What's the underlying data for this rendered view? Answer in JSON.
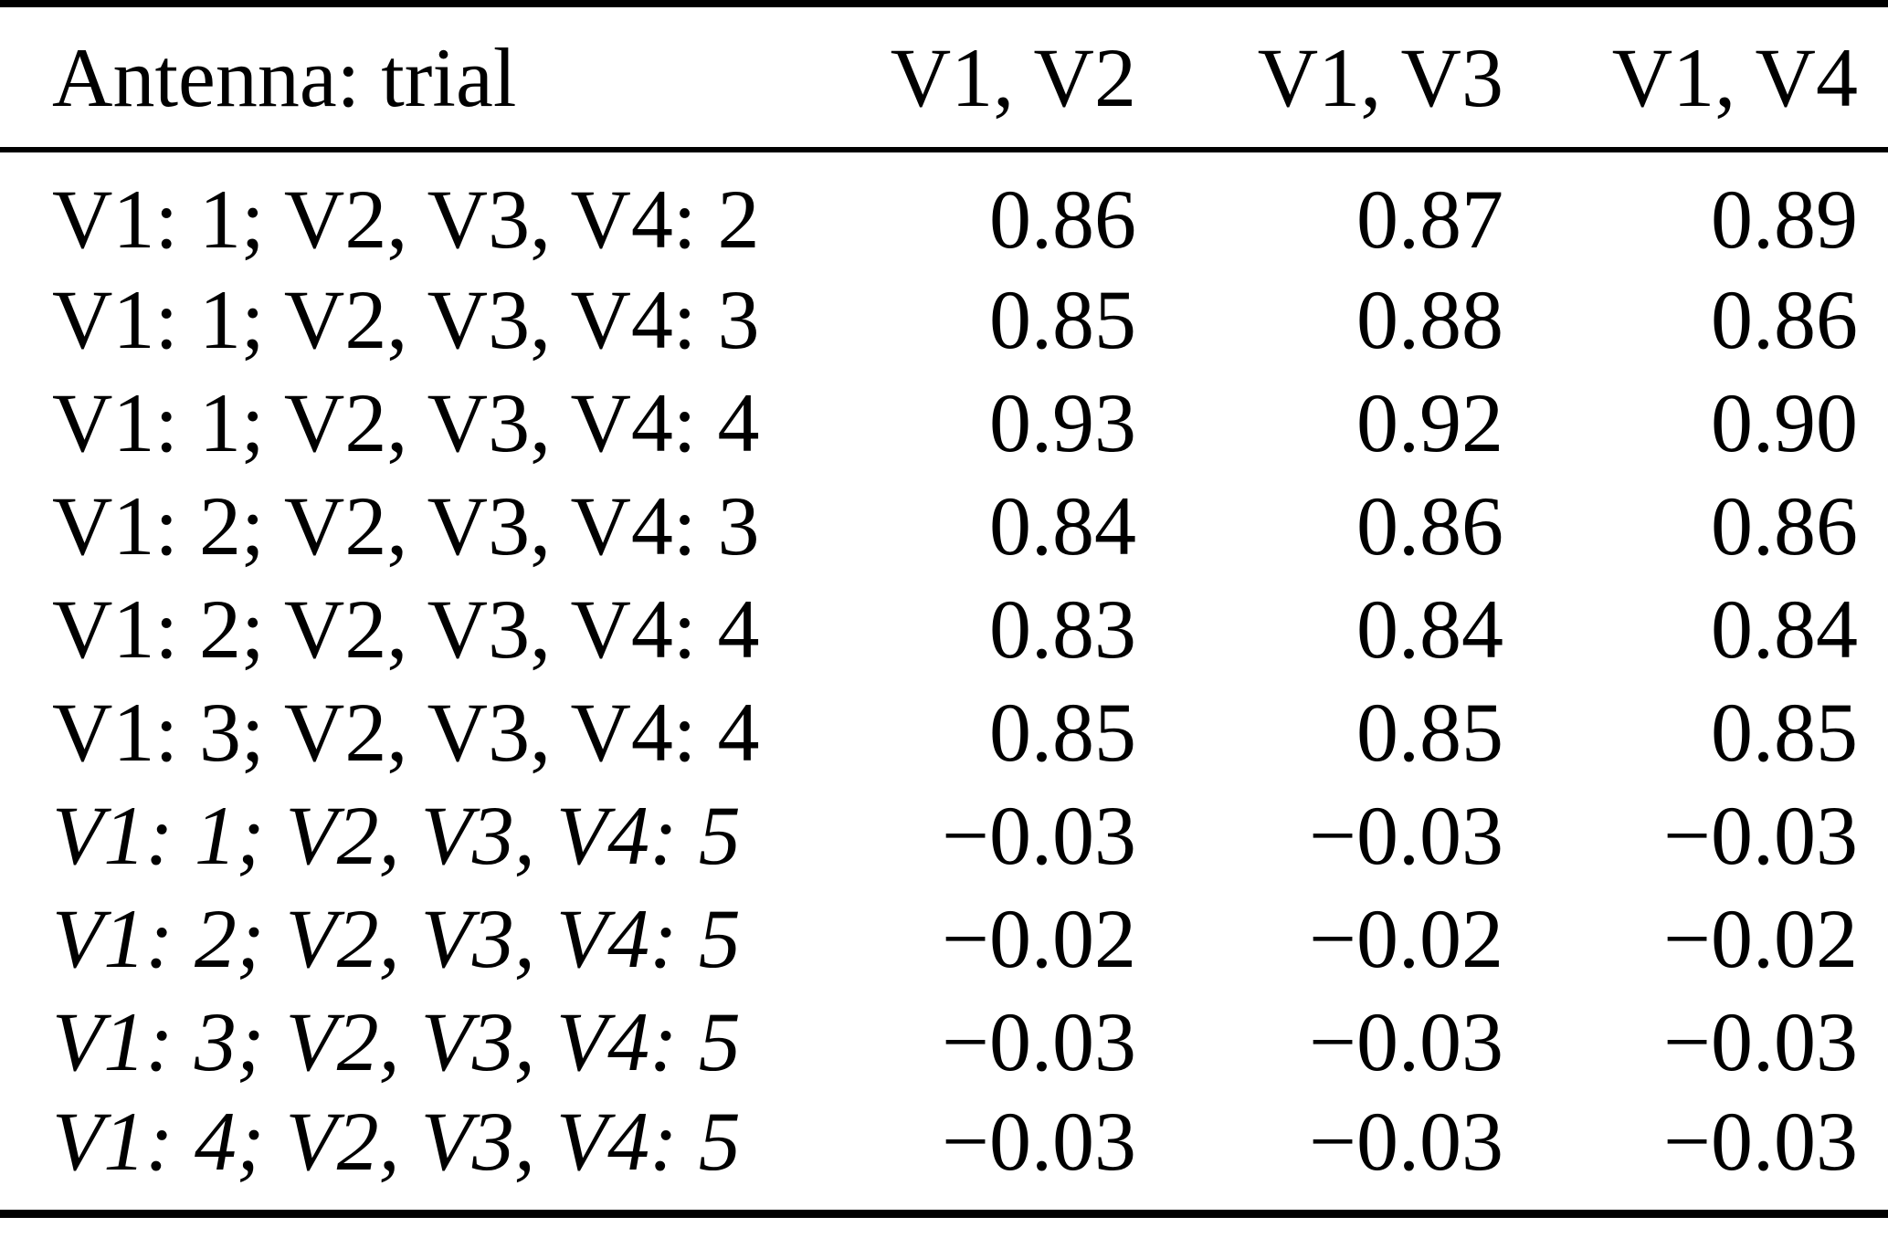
{
  "colors": {
    "background": "#ffffff",
    "text": "#000000",
    "rule": "#000000"
  },
  "table": {
    "columns": [
      "Antenna: trial",
      "V1, V2",
      "V1, V3",
      "V1, V4"
    ],
    "rows": [
      {
        "label": "V1: 1; V2, V3, V4: 2",
        "values": [
          "0.86",
          "0.87",
          "0.89"
        ],
        "italic": false
      },
      {
        "label": "V1: 1; V2, V3, V4: 3",
        "values": [
          "0.85",
          "0.88",
          "0.86"
        ],
        "italic": false
      },
      {
        "label": "V1: 1; V2, V3, V4: 4",
        "values": [
          "0.93",
          "0.92",
          "0.90"
        ],
        "italic": false
      },
      {
        "label": "V1: 2; V2, V3, V4: 3",
        "values": [
          "0.84",
          "0.86",
          "0.86"
        ],
        "italic": false
      },
      {
        "label": "V1: 2; V2, V3, V4: 4",
        "values": [
          "0.83",
          "0.84",
          "0.84"
        ],
        "italic": false
      },
      {
        "label": "V1: 3; V2, V3, V4: 4",
        "values": [
          "0.85",
          "0.85",
          "0.85"
        ],
        "italic": false
      },
      {
        "label": "V1: 1; V2, V3, V4: 5",
        "values": [
          "−0.03",
          "−0.03",
          "−0.03"
        ],
        "italic": true
      },
      {
        "label": "V1: 2; V2, V3, V4: 5",
        "values": [
          "−0.02",
          "−0.02",
          "−0.02"
        ],
        "italic": true
      },
      {
        "label": "V1: 3; V2, V3, V4: 5",
        "values": [
          "−0.03",
          "−0.03",
          "−0.03"
        ],
        "italic": true
      },
      {
        "label": "V1: 4; V2, V3, V4: 5",
        "values": [
          "−0.03",
          "−0.03",
          "−0.03"
        ],
        "italic": true
      }
    ]
  },
  "chart_data": {
    "type": "table",
    "title": "",
    "columns": [
      "Antenna: trial",
      "V1, V2",
      "V1, V3",
      "V1, V4"
    ],
    "rows": [
      [
        "V1: 1; V2, V3, V4: 2",
        0.86,
        0.87,
        0.89
      ],
      [
        "V1: 1; V2, V3, V4: 3",
        0.85,
        0.88,
        0.86
      ],
      [
        "V1: 1; V2, V3, V4: 4",
        0.93,
        0.92,
        0.9
      ],
      [
        "V1: 2; V2, V3, V4: 3",
        0.84,
        0.86,
        0.86
      ],
      [
        "V1: 2; V2, V3, V4: 4",
        0.83,
        0.84,
        0.84
      ],
      [
        "V1: 3; V2, V3, V4: 4",
        0.85,
        0.85,
        0.85
      ],
      [
        "V1: 1; V2, V3, V4: 5",
        -0.03,
        -0.03,
        -0.03
      ],
      [
        "V1: 2; V2, V3, V4: 5",
        -0.02,
        -0.02,
        -0.02
      ],
      [
        "V1: 3; V2, V3, V4: 5",
        -0.03,
        -0.03,
        -0.03
      ],
      [
        "V1: 4; V2, V3, V4: 5",
        -0.03,
        -0.03,
        -0.03
      ]
    ]
  }
}
